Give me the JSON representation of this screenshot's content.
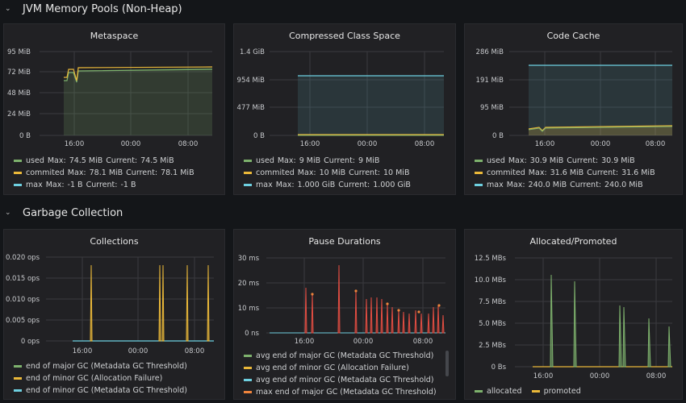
{
  "rows": [
    {
      "title": "JVM Memory Pools (Non-Heap)"
    },
    {
      "title": "Garbage Collection"
    }
  ],
  "colors": {
    "green": "#7eb26d",
    "yellow": "#eab839",
    "cyan": "#6ed0e0",
    "orange": "#ef843c",
    "red": "#e24d42"
  },
  "panels": {
    "metaspace": {
      "title": "Metaspace",
      "y_ticks": [
        "95 MiB",
        "72 MiB",
        "48 MiB",
        "24 MiB",
        "0 B"
      ],
      "x_ticks": [
        "16:00",
        "00:00",
        "08:00"
      ],
      "legend": [
        {
          "name": "used",
          "max_label": "Max:",
          "max": "74.5 MiB",
          "cur_label": "Current:",
          "current": "74.5 MiB"
        },
        {
          "name": "commited",
          "max_label": "Max:",
          "max": "78.1 MiB",
          "cur_label": "Current:",
          "current": "78.1 MiB"
        },
        {
          "name": "max",
          "max_label": "Max:",
          "max": "-1 B",
          "cur_label": "Current:",
          "current": "-1 B"
        }
      ]
    },
    "compressed": {
      "title": "Compressed Class Space",
      "y_ticks": [
        "1.4 GiB",
        "954 MiB",
        "477 MiB",
        "0 B"
      ],
      "x_ticks": [
        "16:00",
        "00:00",
        "08:00"
      ],
      "legend": [
        {
          "name": "used",
          "max_label": "Max:",
          "max": "9 MiB",
          "cur_label": "Current:",
          "current": "9 MiB"
        },
        {
          "name": "commited",
          "max_label": "Max:",
          "max": "10 MiB",
          "cur_label": "Current:",
          "current": "10 MiB"
        },
        {
          "name": "max",
          "max_label": "Max:",
          "max": "1.000 GiB",
          "cur_label": "Current:",
          "current": "1.000 GiB"
        }
      ]
    },
    "codecache": {
      "title": "Code Cache",
      "y_ticks": [
        "286 MiB",
        "191 MiB",
        "95 MiB",
        "0 B"
      ],
      "x_ticks": [
        "16:00",
        "00:00",
        "08:00"
      ],
      "legend": [
        {
          "name": "used",
          "max_label": "Max:",
          "max": "30.9 MiB",
          "cur_label": "Current:",
          "current": "30.9 MiB"
        },
        {
          "name": "commited",
          "max_label": "Max:",
          "max": "31.6 MiB",
          "cur_label": "Current:",
          "current": "31.6 MiB"
        },
        {
          "name": "max",
          "max_label": "Max:",
          "max": "240.0 MiB",
          "cur_label": "Current:",
          "current": "240.0 MiB"
        }
      ]
    },
    "collections": {
      "title": "Collections",
      "y_ticks": [
        "0.020 ops",
        "0.015 ops",
        "0.010 ops",
        "0.005 ops",
        "0 ops"
      ],
      "x_ticks": [
        "16:00",
        "00:00",
        "08:00"
      ],
      "legend": [
        {
          "name": "end of major GC (Metadata GC Threshold)"
        },
        {
          "name": "end of minor GC (Allocation Failure)"
        },
        {
          "name": "end of minor GC (Metadata GC Threshold)"
        }
      ]
    },
    "pause": {
      "title": "Pause Durations",
      "y_ticks": [
        "30 ms",
        "20 ms",
        "10 ms",
        "0 ns"
      ],
      "x_ticks": [
        "16:00",
        "00:00",
        "08:00"
      ],
      "legend": [
        {
          "name": "avg end of major GC (Metadata GC Threshold)"
        },
        {
          "name": "avg end of minor GC (Allocation Failure)"
        },
        {
          "name": "avg end of minor GC (Metadata GC Threshold)"
        },
        {
          "name": "max end of major GC (Metadata GC Threshold)"
        }
      ]
    },
    "allocated": {
      "title": "Allocated/Promoted",
      "y_ticks": [
        "12.5 MBs",
        "10.0 MBs",
        "7.5 MBs",
        "5.0 MBs",
        "2.5 MBs",
        "0 Bs"
      ],
      "x_ticks": [
        "16:00",
        "00:00",
        "08:00"
      ],
      "legend": [
        {
          "name": "allocated"
        },
        {
          "name": "promoted"
        }
      ]
    }
  }
}
